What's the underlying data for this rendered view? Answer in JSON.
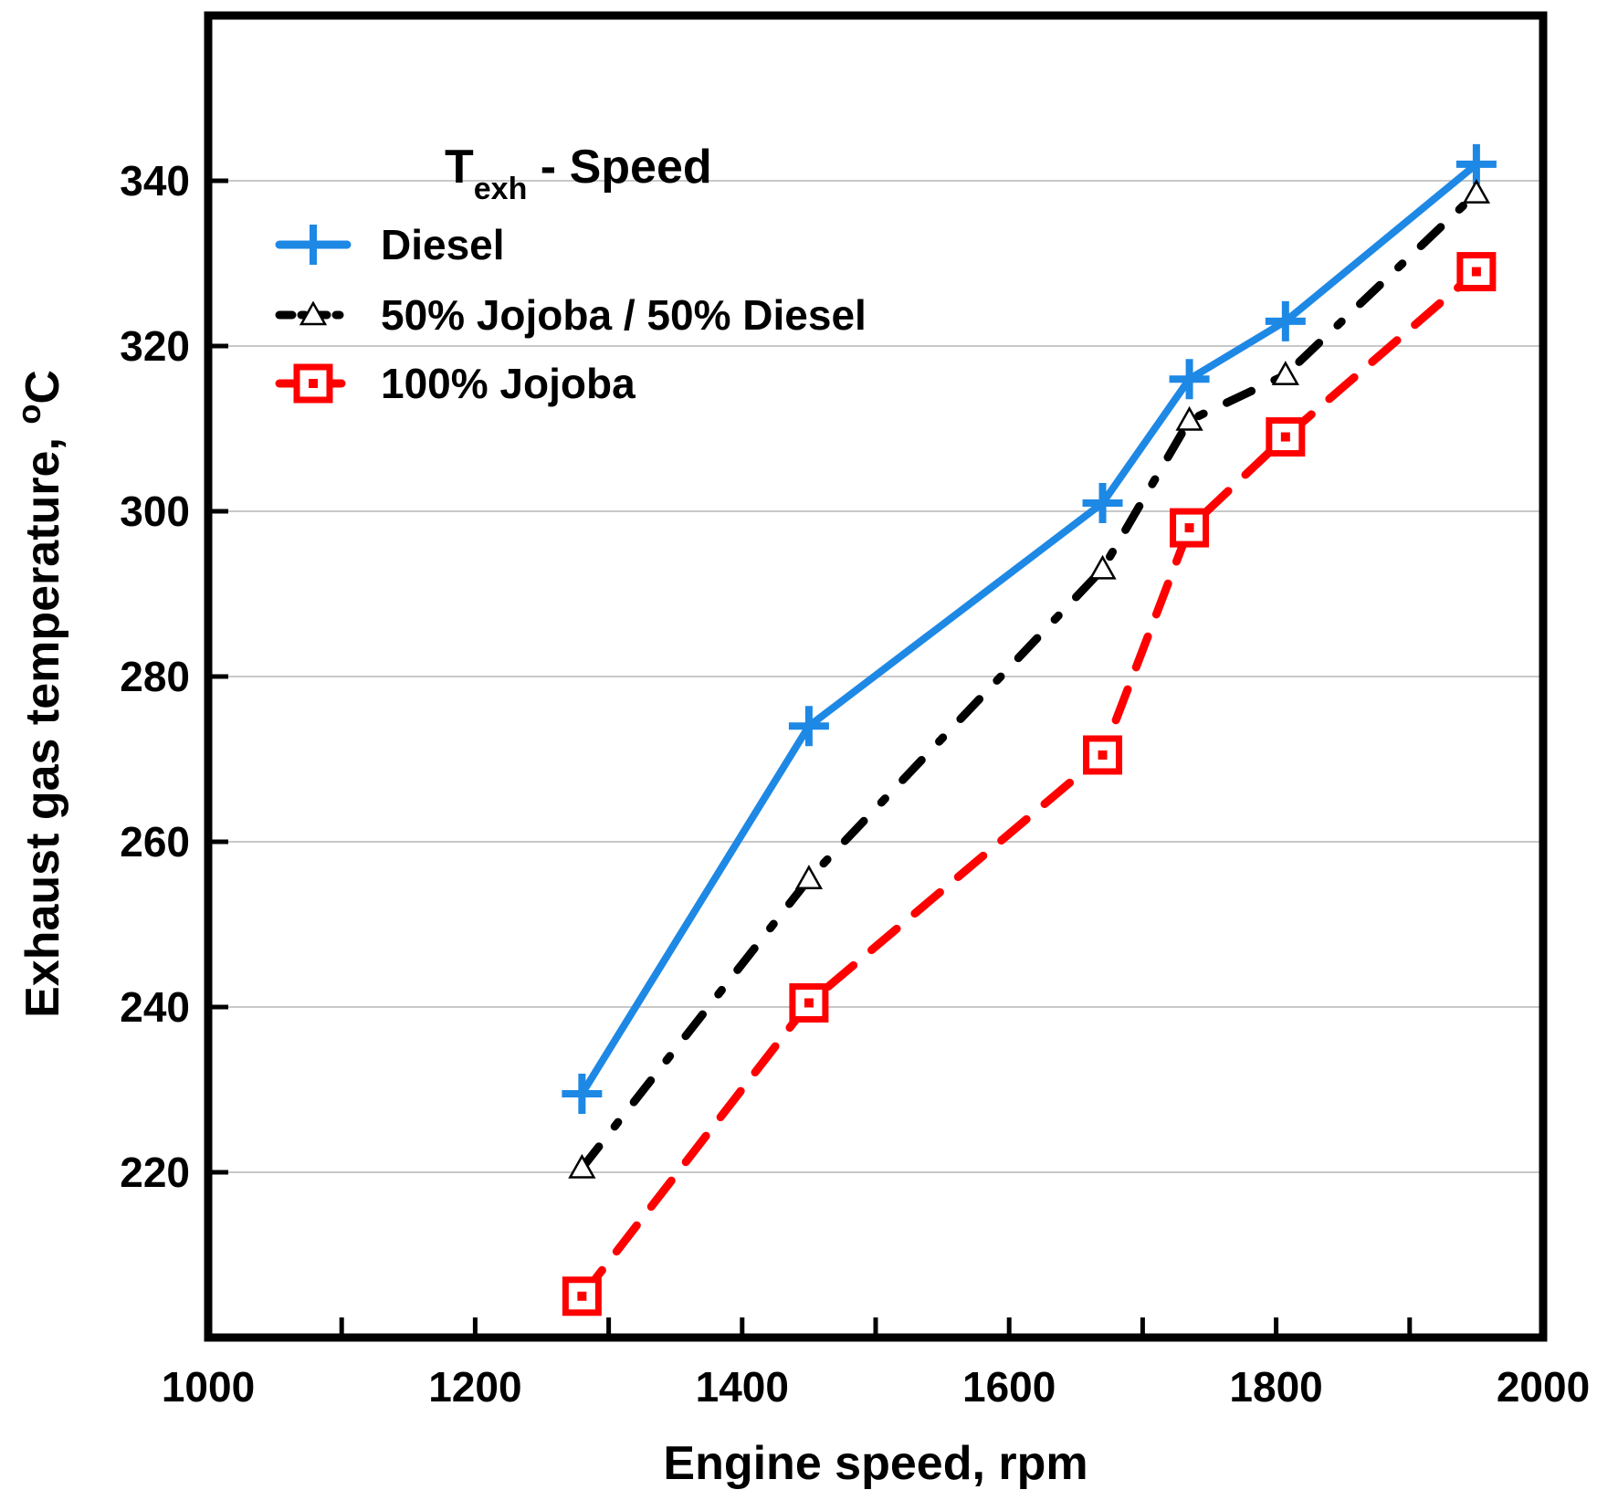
{
  "chart_data": {
    "type": "line",
    "title": "",
    "xlabel": "Engine speed, rpm",
    "ylabel": "Exhaust gas temperature, ",
    "ylabel_unit_sup": "o",
    "ylabel_unit": "C",
    "xlim": [
      1000,
      2000
    ],
    "ylim": [
      200,
      360
    ],
    "x_ticks": [
      1000,
      1100,
      1200,
      1300,
      1400,
      1500,
      1600,
      1700,
      1800,
      1900,
      2000
    ],
    "x_tick_labels": [
      "1000",
      "1200",
      "1400",
      "1600",
      "1800",
      "2000"
    ],
    "x_tick_label_values": [
      1000,
      1200,
      1400,
      1600,
      1800,
      2000
    ],
    "y_ticks": [
      220,
      240,
      260,
      280,
      300,
      320,
      340
    ],
    "y_tick_labels": [
      "220",
      "240",
      "260",
      "280",
      "300",
      "320",
      "340"
    ],
    "grid": "horizontal",
    "legend": {
      "title_main": "T",
      "title_sub": "exh",
      "title_rest": " - Speed",
      "placement": "top-left"
    },
    "series": [
      {
        "name": "Diesel",
        "color": "#1e88e5",
        "marker": "plus",
        "line": "solid",
        "x": [
          1280,
          1450,
          1670,
          1735,
          1807,
          1950
        ],
        "y": [
          229.5,
          274,
          301,
          316,
          323,
          342
        ]
      },
      {
        "name": "50% Jojoba / 50% Diesel",
        "color": "#000000",
        "marker": "triangle",
        "line": "dashdot",
        "x": [
          1280,
          1450,
          1670,
          1735,
          1807,
          1950
        ],
        "y": [
          220.5,
          255.5,
          293,
          311,
          316.5,
          338.5
        ]
      },
      {
        "name": "100% Jojoba",
        "color": "#ff0000",
        "marker": "square",
        "line": "dashed",
        "x": [
          1280,
          1450,
          1670,
          1735,
          1807,
          1950
        ],
        "y": [
          205,
          240.5,
          270.5,
          298,
          309,
          329
        ]
      }
    ]
  }
}
